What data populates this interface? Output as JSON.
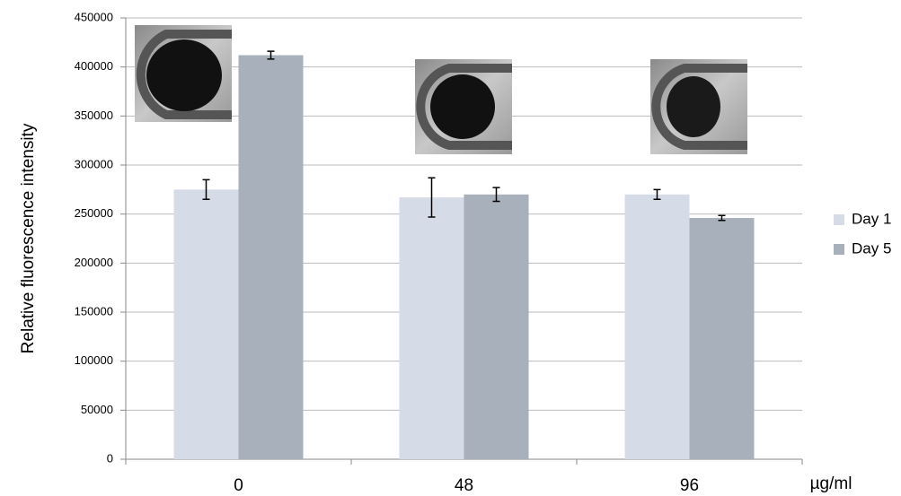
{
  "chart_data": {
    "type": "bar",
    "y_label": "Relative fluorescence intensity",
    "x_label": "µg/ml",
    "categories": [
      "0",
      "48",
      "96"
    ],
    "series": [
      {
        "name": "Day 1",
        "color": "#d5dce8",
        "values": [
          275000,
          267000,
          270000
        ],
        "errors": [
          10000,
          20000,
          5000
        ]
      },
      {
        "name": "Day 5",
        "color": "#a8b0bc",
        "values": [
          412000,
          270000,
          246000
        ],
        "errors": [
          4000,
          7000,
          2500
        ]
      }
    ],
    "ylim": [
      0,
      450000
    ],
    "yticks": [
      0,
      50000,
      100000,
      150000,
      200000,
      250000,
      300000,
      350000,
      400000,
      450000
    ],
    "grid": true,
    "legend": "right"
  }
}
